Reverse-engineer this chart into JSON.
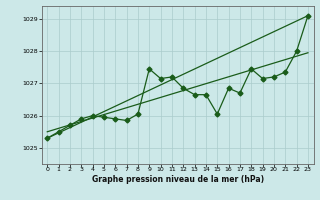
{
  "xlabel": "Graphe pression niveau de la mer (hPa)",
  "ylim": [
    1024.5,
    1029.4
  ],
  "xlim": [
    -0.5,
    23.5
  ],
  "yticks": [
    1025,
    1026,
    1027,
    1028,
    1029
  ],
  "xticks": [
    0,
    1,
    2,
    3,
    4,
    5,
    6,
    7,
    8,
    9,
    10,
    11,
    12,
    13,
    14,
    15,
    16,
    17,
    18,
    19,
    20,
    21,
    22,
    23
  ],
  "bg_color": "#cce8e8",
  "line_color": "#1a5c1a",
  "grid_color": "#aacccc",
  "line_x": [
    0,
    1,
    2,
    3,
    4,
    5,
    6,
    7,
    8,
    9,
    10,
    11,
    12,
    13,
    14,
    15,
    16,
    17,
    18,
    19,
    20,
    21,
    22,
    23
  ],
  "line_y": [
    1025.3,
    1025.5,
    1025.7,
    1025.9,
    1026.0,
    1025.95,
    1025.9,
    1025.85,
    1026.05,
    1027.45,
    1027.15,
    1027.2,
    1026.85,
    1026.65,
    1026.65,
    1026.05,
    1026.85,
    1026.7,
    1027.45,
    1027.15,
    1027.2,
    1027.35,
    1028.0,
    1029.1
  ],
  "trend1_x": [
    0,
    23
  ],
  "trend1_y": [
    1025.3,
    1029.1
  ],
  "trend2_x": [
    0,
    23
  ],
  "trend2_y": [
    1025.5,
    1027.95
  ]
}
